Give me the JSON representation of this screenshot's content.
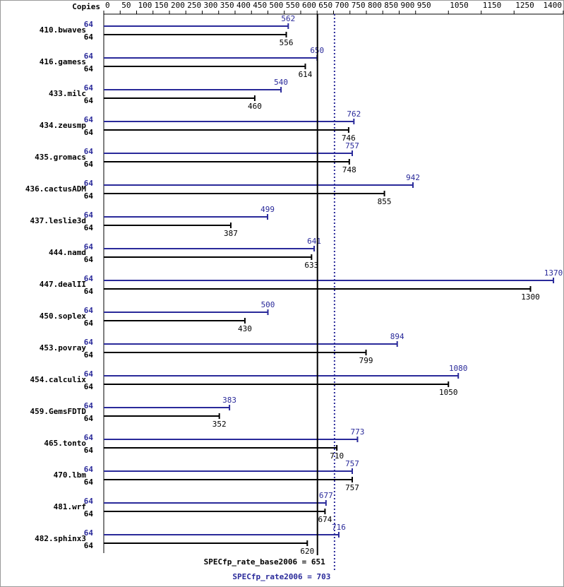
{
  "chart_data": {
    "type": "hbar",
    "axis_label": "Copies",
    "categories": [
      "410.bwaves",
      "416.gamess",
      "433.milc",
      "434.zeusmp",
      "435.gromacs",
      "436.cactusADM",
      "437.leslie3d",
      "444.namd",
      "447.dealII",
      "450.soplex",
      "453.povray",
      "454.calculix",
      "459.GemsFDTD",
      "465.tonto",
      "470.lbm",
      "481.wrf",
      "482.sphinx3"
    ],
    "series": [
      {
        "color": "#2a2a9a",
        "copies": [
          64,
          64,
          64,
          64,
          64,
          64,
          64,
          64,
          64,
          64,
          64,
          64,
          64,
          64,
          64,
          64,
          64
        ],
        "values": [
          562,
          650,
          540,
          762,
          757,
          942,
          499,
          641,
          1370,
          500,
          894,
          1080,
          383,
          773,
          757,
          677,
          716
        ]
      },
      {
        "color": "#000000",
        "copies": [
          64,
          64,
          64,
          64,
          64,
          64,
          64,
          64,
          64,
          64,
          64,
          64,
          64,
          64,
          64,
          64,
          64
        ],
        "values": [
          556,
          614,
          460,
          746,
          748,
          855,
          387,
          633,
          1300,
          430,
          799,
          1050,
          352,
          710,
          757,
          674,
          620
        ]
      }
    ],
    "reference_lines": [
      {
        "label": "SPECfp_rate_base2006 = 651",
        "value": 651,
        "color": "#000000",
        "style": "solid"
      },
      {
        "label": "SPECfp_rate2006 = 703",
        "value": 703,
        "color": "#2a2a9a",
        "style": "dotted"
      }
    ],
    "xlim": [
      0,
      1400
    ],
    "xticks": [
      0,
      50,
      100,
      150,
      200,
      250,
      300,
      350,
      400,
      450,
      500,
      550,
      600,
      650,
      700,
      750,
      800,
      850,
      900,
      950,
      1050,
      1150,
      1250,
      1400
    ]
  }
}
